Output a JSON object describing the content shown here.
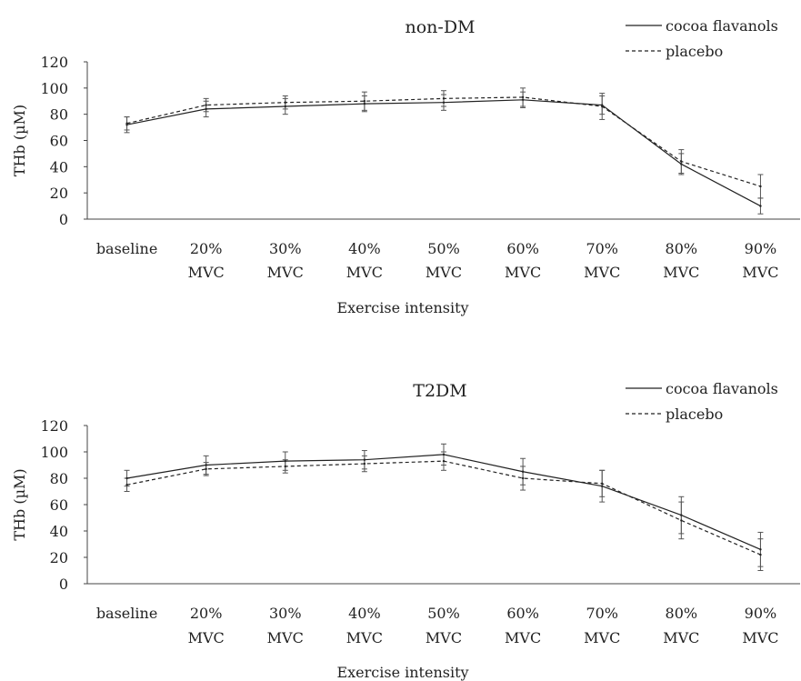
{
  "chart_data": [
    {
      "type": "line",
      "title": "non-DM",
      "xlabel": "Exercise intensity",
      "ylabel": "THb (µM)",
      "categories": [
        [
          "baseline"
        ],
        [
          "20%",
          "MVC"
        ],
        [
          "30%",
          "MVC"
        ],
        [
          "40%",
          "MVC"
        ],
        [
          "50%",
          "MVC"
        ],
        [
          "60%",
          "MVC"
        ],
        [
          "70%",
          "MVC"
        ],
        [
          "80%",
          "MVC"
        ],
        [
          "90%",
          "MVC"
        ]
      ],
      "yticks": [
        "0",
        "20",
        "40",
        "60",
        "80",
        "100",
        "120"
      ],
      "ylim": [
        0,
        120
      ],
      "legend_position": "top-right",
      "grid": false,
      "series": [
        {
          "name": "cocoa flavanols",
          "style": "solid",
          "values": [
            72,
            84,
            86,
            88,
            89,
            91,
            87,
            42,
            10
          ],
          "errors": [
            6,
            6,
            6,
            6,
            6,
            6,
            7,
            8,
            6
          ]
        },
        {
          "name": "placebo",
          "style": "dashed",
          "values": [
            73,
            87,
            89,
            90,
            92,
            93,
            86,
            44,
            25
          ],
          "errors": [
            5,
            5,
            5,
            7,
            6,
            7,
            10,
            9,
            9
          ]
        }
      ]
    },
    {
      "type": "line",
      "title": "T2DM",
      "xlabel": "Exercise intensity",
      "ylabel": "THb (µM)",
      "categories": [
        [
          "baseline"
        ],
        [
          "20%",
          "MVC"
        ],
        [
          "30%",
          "MVC"
        ],
        [
          "40%",
          "MVC"
        ],
        [
          "50%",
          "MVC"
        ],
        [
          "60%",
          "MVC"
        ],
        [
          "70%",
          "MVC"
        ],
        [
          "80%",
          "MVC"
        ],
        [
          "90%",
          "MVC"
        ]
      ],
      "yticks": [
        "0",
        "20",
        "40",
        "60",
        "80",
        "100",
        "120"
      ],
      "ylim": [
        0,
        120
      ],
      "legend_position": "top-right",
      "grid": false,
      "series": [
        {
          "name": "cocoa flavanols",
          "style": "solid",
          "values": [
            80,
            90,
            93,
            94,
            98,
            85,
            74,
            52,
            26
          ],
          "errors": [
            6,
            7,
            7,
            7,
            8,
            10,
            12,
            14,
            13
          ]
        },
        {
          "name": "placebo",
          "style": "dashed",
          "values": [
            75,
            87,
            89,
            91,
            93,
            80,
            76,
            48,
            22
          ],
          "errors": [
            5,
            5,
            5,
            6,
            7,
            9,
            10,
            14,
            12
          ]
        }
      ]
    }
  ]
}
